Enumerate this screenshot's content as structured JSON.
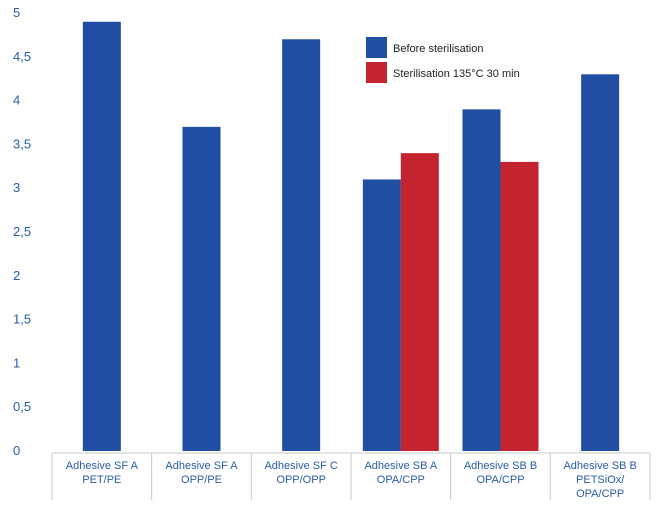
{
  "chart_data": {
    "type": "bar",
    "categories": [
      [
        "Adhesive SF A",
        "PET/PE"
      ],
      [
        "Adhesive SF A",
        "OPP/PE"
      ],
      [
        "Adhesive SF C",
        "OPP/OPP"
      ],
      [
        "Adhesive SB A",
        "OPA/CPP"
      ],
      [
        "Adhesive SB B",
        "OPA/CPP"
      ],
      [
        "Adhesive SB B",
        "PETSiOx/",
        "OPA/CPP"
      ]
    ],
    "series": [
      {
        "name": "Before sterilisation",
        "color": "#1f4ea3",
        "values": [
          4.9,
          3.7,
          4.7,
          3.1,
          3.9,
          4.3
        ]
      },
      {
        "name": "Sterilisation 135°C 30 min",
        "color": "#c42430",
        "values": [
          null,
          null,
          null,
          3.4,
          3.3,
          null
        ]
      }
    ],
    "ylim": [
      0,
      5
    ],
    "yticks": [
      "0",
      "0,5",
      "1",
      "1,5",
      "2",
      "2,5",
      "3",
      "3,5",
      "4",
      "4,5",
      "5"
    ],
    "title": "",
    "xlabel": "",
    "ylabel": "",
    "grid": false,
    "legend_position": "top-right"
  }
}
